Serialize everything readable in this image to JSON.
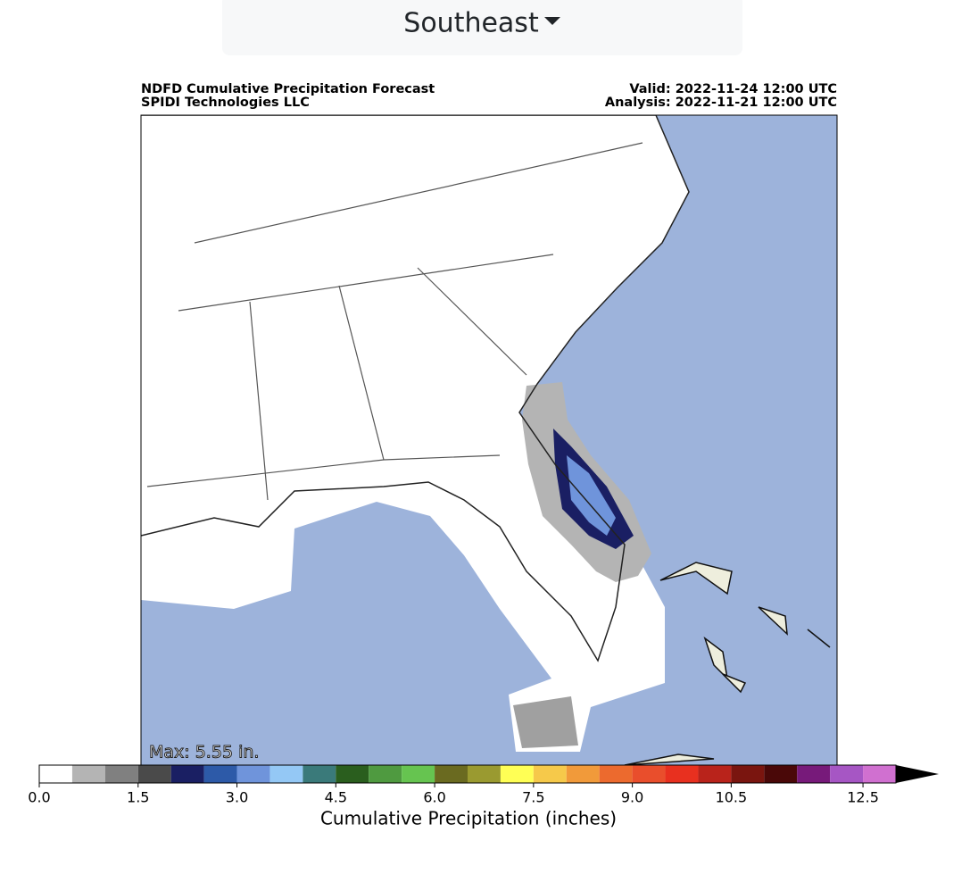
{
  "region_selector": {
    "label": "Southeast"
  },
  "map": {
    "title_left": [
      "NDFD Cumulative Precipitation Forecast",
      "SPIDI Technologies LLC"
    ],
    "title_right": [
      "Valid: 2022-11-24 12:00 UTC",
      "Analysis: 2022-11-21 12:00 UTC"
    ],
    "max_label": "Max: 5.55 in."
  },
  "colorbar": {
    "label": "Cumulative Precipitation (inches)",
    "xlim": [
      0,
      13
    ],
    "levels": [
      0,
      0.5,
      1,
      1.5,
      2,
      2.5,
      3,
      3.5,
      4,
      4.5,
      5,
      5.5,
      6,
      6.5,
      7,
      7.5,
      8,
      8.5,
      9,
      9.5,
      10,
      10.5,
      11,
      11.5,
      12,
      12.5,
      13
    ],
    "colors": [
      "#ffffff",
      "#b4b4b4",
      "#808080",
      "#4a4a4a",
      "#1a1f63",
      "#2d5aa8",
      "#6f94db",
      "#94c8f5",
      "#3a7a7a",
      "#2a5e1e",
      "#4f9a40",
      "#66c450",
      "#6a6a20",
      "#9a9a30",
      "#ffff55",
      "#f6c94a",
      "#f19a3a",
      "#ec6a2e",
      "#e94e2c",
      "#e8301f",
      "#b9231b",
      "#7a150f",
      "#4a0808",
      "#771a7a",
      "#a656c4",
      "#d070d0"
    ],
    "extend_color": "#000000",
    "xticks": [
      {
        "value": 0,
        "label": "0.0"
      },
      1.5,
      {
        "value": 3,
        "label": "3.0"
      },
      4.5,
      {
        "value": 6,
        "label": "6.0"
      },
      7.5,
      {
        "value": 9,
        "label": "9.0"
      },
      10.5,
      12.5
    ]
  }
}
